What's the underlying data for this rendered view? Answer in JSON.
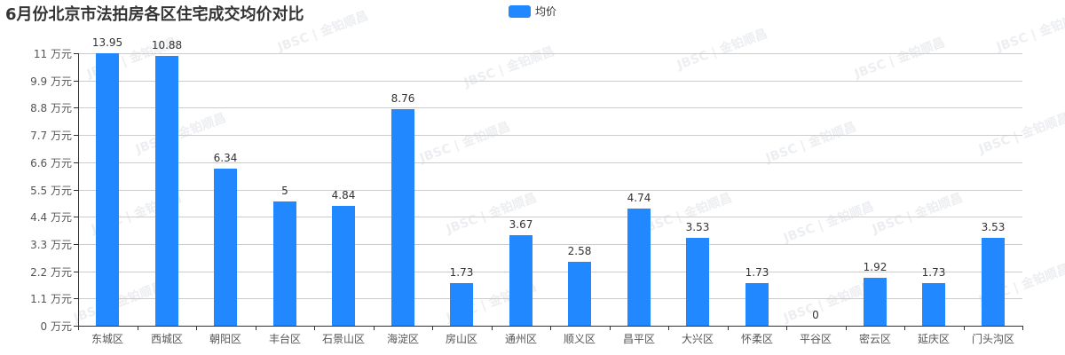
{
  "title": "6月份北京市法拍房各区住宅成交均价对比",
  "legend": {
    "label": "均价",
    "color": "#2288ff"
  },
  "watermark_text": "JBSC | 金铂顺昌",
  "chart_data": {
    "type": "bar",
    "title": "6月份北京市法拍房各区住宅成交均价对比",
    "xlabel": "",
    "ylabel": "万元",
    "ylim": [
      0,
      11
    ],
    "grid": true,
    "legend_position": "top-center",
    "y_ticks": [
      "0 万元",
      "1.1 万元",
      "2.2 万元",
      "3.3 万元",
      "4.4 万元",
      "5.5 万元",
      "6.6 万元",
      "7.7 万元",
      "8.8 万元",
      "9.9 万元",
      "11 万元"
    ],
    "y_tick_values": [
      0,
      1.1,
      2.2,
      3.3,
      4.4,
      5.5,
      6.6,
      7.7,
      8.8,
      9.9,
      11
    ],
    "categories": [
      "东城区",
      "西城区",
      "朝阳区",
      "丰台区",
      "石景山区",
      "海淀区",
      "房山区",
      "通州区",
      "顺义区",
      "昌平区",
      "大兴区",
      "怀柔区",
      "平谷区",
      "密云区",
      "延庆区",
      "门头沟区"
    ],
    "series": [
      {
        "name": "均价",
        "color": "#2288ff",
        "values": [
          13.95,
          10.88,
          6.34,
          5,
          4.84,
          8.76,
          1.73,
          3.67,
          2.58,
          4.74,
          3.53,
          1.73,
          0,
          1.92,
          1.73,
          3.53
        ],
        "labels": [
          "13.95",
          "10.88",
          "6.34",
          "5",
          "4.84",
          "8.76",
          "1.73",
          "3.67",
          "2.58",
          "4.74",
          "3.53",
          "1.73",
          "0",
          "1.92",
          "1.73",
          "3.53"
        ]
      }
    ]
  }
}
